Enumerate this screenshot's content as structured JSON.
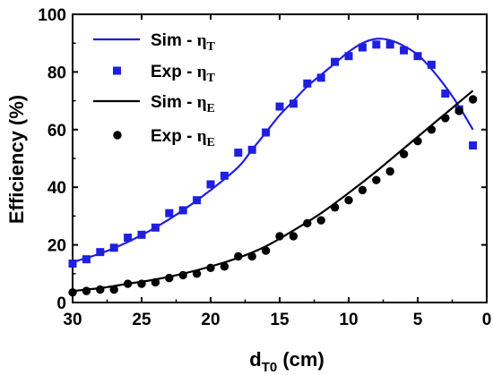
{
  "chart_data": {
    "type": "scatter",
    "xlabel_main": "d",
    "xlabel_sub": "T0",
    "xlabel_unit": " (cm)",
    "ylabel": "Efficiency (%)",
    "xlim": [
      30,
      0
    ],
    "ylim": [
      0,
      100
    ],
    "x_ticks": [
      30,
      25,
      20,
      15,
      10,
      5,
      0
    ],
    "y_ticks": [
      0,
      20,
      40,
      60,
      80,
      100
    ],
    "grid": false,
    "legend_position": "top-left",
    "series": [
      {
        "name": "Sim - ηT",
        "label_main": "Sim - ",
        "label_greek": "η",
        "label_sub": "T",
        "kind": "line",
        "color": "#1f1fe0",
        "x": [
          30,
          28,
          26,
          24,
          22,
          20,
          18,
          17,
          16,
          15,
          14,
          13,
          12,
          11,
          10,
          9,
          8,
          7,
          6,
          5,
          4,
          3,
          2,
          1
        ],
        "y": [
          14,
          17,
          21,
          26,
          32,
          39,
          47,
          53,
          59,
          65,
          70,
          75,
          79,
          83,
          87,
          90,
          91.5,
          91,
          89,
          86,
          81,
          75,
          68,
          60
        ]
      },
      {
        "name": "Exp - ηT",
        "label_main": "Exp - ",
        "label_greek": "η",
        "label_sub": "T",
        "kind": "square",
        "color": "#1f1fe0",
        "x": [
          30,
          29,
          28,
          27,
          26,
          25,
          24,
          23,
          22,
          21,
          20,
          19,
          18,
          17,
          16,
          15,
          14,
          13,
          12,
          11,
          10,
          9,
          8,
          7,
          6,
          5,
          4,
          3,
          2,
          1
        ],
        "y": [
          13.5,
          15,
          17.5,
          19,
          22.5,
          23.5,
          26,
          31,
          32,
          35.5,
          41,
          44,
          52,
          53,
          59,
          68,
          69,
          76,
          78,
          83.5,
          85.5,
          88.5,
          89.5,
          89.5,
          87.5,
          85.5,
          82.5,
          72.5,
          67,
          54.5
        ]
      },
      {
        "name": "Sim - ηE",
        "label_main": "Sim - ",
        "label_greek": "η",
        "label_sub": "E",
        "kind": "line",
        "color": "#000000",
        "x": [
          30,
          28,
          26,
          24,
          22,
          20,
          18,
          16,
          14,
          12,
          10,
          8,
          6,
          4,
          2,
          1
        ],
        "y": [
          4,
          5,
          6.5,
          8,
          10,
          12.5,
          15.5,
          19.5,
          25,
          31,
          38,
          45.5,
          53.5,
          61.5,
          69.5,
          73.5
        ]
      },
      {
        "name": "Exp - ηE",
        "label_main": "Exp - ",
        "label_greek": "η",
        "label_sub": "E",
        "kind": "circle",
        "color": "#000000",
        "x": [
          30,
          29,
          28,
          27,
          26,
          25,
          24,
          23,
          22,
          21,
          20,
          19,
          18,
          17,
          16,
          15,
          14,
          13,
          12,
          11,
          10,
          9,
          8,
          7,
          6,
          5,
          4,
          3,
          2,
          1
        ],
        "y": [
          3.5,
          4,
          4.5,
          4.5,
          6.5,
          6.5,
          7,
          8.5,
          9.5,
          10,
          12,
          12.5,
          16,
          16,
          18,
          23,
          23,
          27.5,
          28.5,
          33,
          35.5,
          39,
          42.5,
          45.5,
          51.5,
          56,
          60,
          64,
          66.5,
          70.5
        ]
      }
    ]
  }
}
